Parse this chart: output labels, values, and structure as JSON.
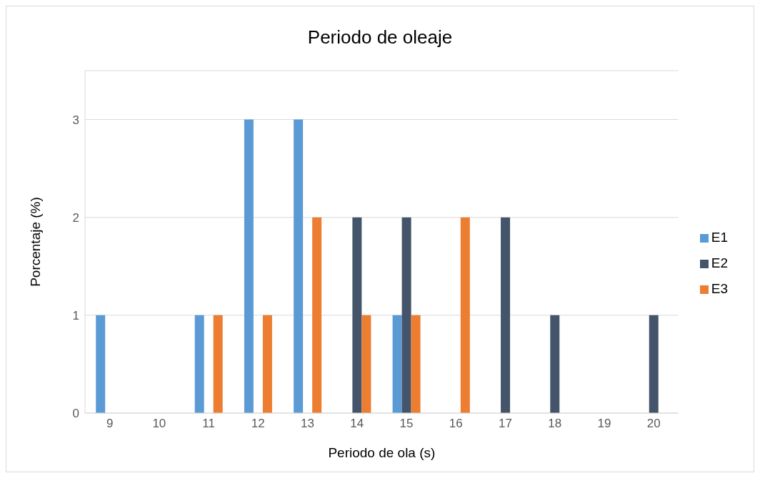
{
  "chart_data": {
    "type": "bar",
    "title": "Periodo de oleaje",
    "xlabel": "Periodo de ola (s)",
    "ylabel": "Porcentaje (%)",
    "categories": [
      "9",
      "10",
      "11",
      "12",
      "13",
      "14",
      "15",
      "16",
      "17",
      "18",
      "19",
      "20"
    ],
    "series": [
      {
        "name": "E1",
        "color": "#5b9bd5",
        "values": [
          1,
          0,
          1,
          3,
          3,
          0,
          1,
          0,
          0,
          0,
          0,
          0
        ]
      },
      {
        "name": "E2",
        "color": "#44546a",
        "values": [
          0,
          0,
          0,
          0,
          0,
          2,
          2,
          0,
          2,
          1,
          0,
          1
        ]
      },
      {
        "name": "E3",
        "color": "#ed7d31",
        "values": [
          0,
          0,
          1,
          1,
          2,
          1,
          1,
          2,
          0,
          0,
          0,
          0
        ]
      }
    ],
    "ylim": [
      0,
      3.5
    ],
    "yticks": [
      0,
      1,
      2,
      3
    ],
    "grid": "y",
    "legend": "right"
  }
}
